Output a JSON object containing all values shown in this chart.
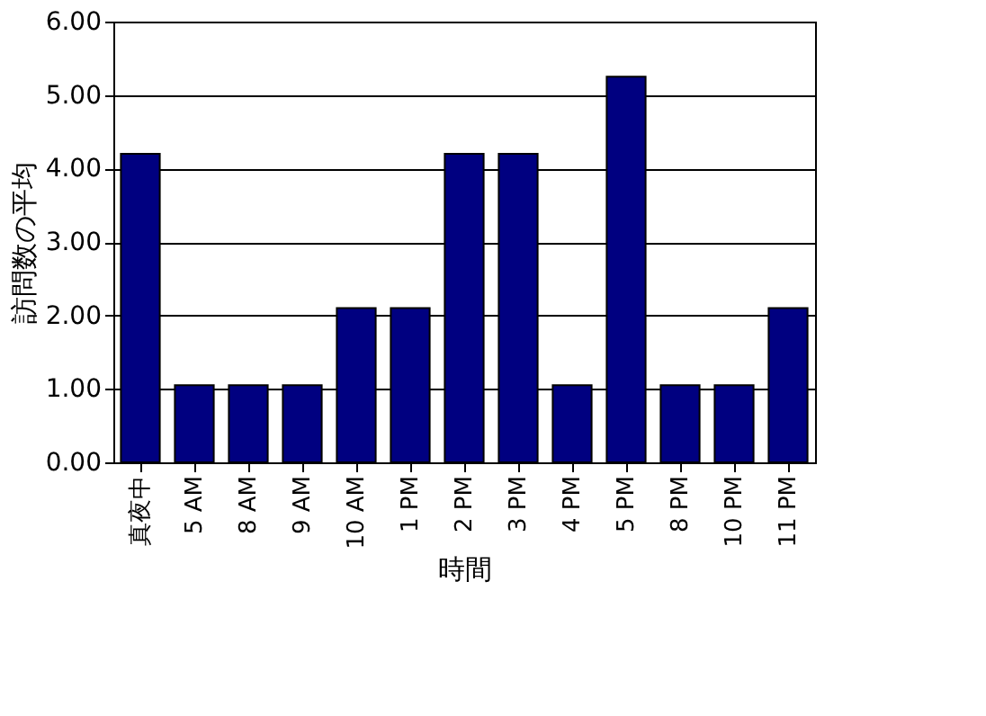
{
  "chart_data": {
    "type": "bar",
    "xlabel": "時間",
    "ylabel": "訪問数の平均",
    "categories": [
      "真夜中",
      "5 AM",
      "8 AM",
      "9 AM",
      "10 AM",
      "1 PM",
      "2 PM",
      "3 PM",
      "4 PM",
      "5 PM",
      "8 PM",
      "10 PM",
      "11 PM"
    ],
    "values": [
      4.2,
      1.05,
      1.05,
      1.05,
      2.1,
      2.1,
      4.2,
      4.2,
      1.05,
      5.25,
      1.05,
      1.05,
      2.1
    ],
    "color": "#000080",
    "ylim": [
      0,
      6
    ],
    "yticks": [
      {
        "value": 0,
        "label": "0.00"
      },
      {
        "value": 1,
        "label": "1.00"
      },
      {
        "value": 2,
        "label": "2.00"
      },
      {
        "value": 3,
        "label": "3.00"
      },
      {
        "value": 4,
        "label": "4.00"
      },
      {
        "value": 5,
        "label": "5.00"
      },
      {
        "value": 6,
        "label": "6.00"
      }
    ],
    "grid": "y"
  }
}
